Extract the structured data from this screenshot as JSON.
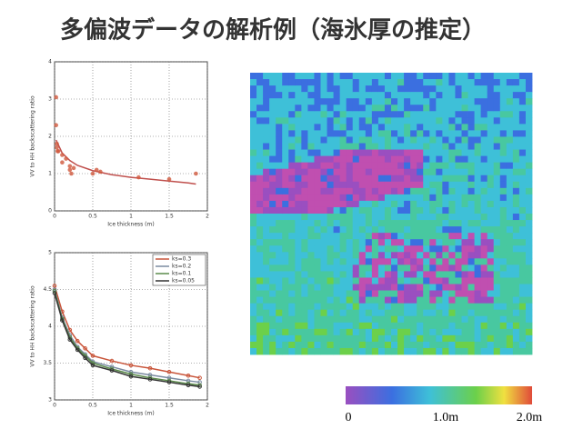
{
  "title": "多偏波データの解析例（海氷厚の推定）",
  "chart_data": [
    {
      "type": "scatter",
      "xlabel": "Ice thickness (m)",
      "ylabel": "VV to HH backscattering ratio",
      "xlim": [
        0,
        2
      ],
      "xticks": [
        0,
        0.5,
        1,
        1.5,
        2
      ],
      "ylim": [
        0,
        4
      ],
      "yticks": [
        0,
        1,
        2,
        3,
        4
      ],
      "grid": true,
      "series": [
        {
          "color": "#d0583c",
          "x": [
            0.02,
            0.02,
            0.03,
            0.03,
            0.04,
            0.05,
            0.1,
            0.1,
            0.15,
            0.2,
            0.2,
            0.22,
            0.25,
            0.5,
            0.55,
            0.6,
            1.1,
            1.5,
            1.85
          ],
          "values": [
            3.05,
            2.3,
            1.8,
            1.7,
            1.6,
            1.6,
            1.5,
            1.3,
            1.4,
            1.2,
            1.1,
            1.0,
            1.15,
            1.0,
            1.1,
            1.05,
            0.9,
            0.85,
            1.0
          ]
        }
      ],
      "fit": {
        "color": "#c0504d",
        "x": [
          0.02,
          0.1,
          0.2,
          0.3,
          0.5,
          0.75,
          1,
          1.25,
          1.5,
          1.75,
          1.85
        ],
        "values": [
          1.9,
          1.55,
          1.35,
          1.22,
          1.08,
          0.97,
          0.9,
          0.85,
          0.8,
          0.75,
          0.72
        ]
      }
    },
    {
      "type": "line",
      "xlabel": "Ice thickness (m)",
      "ylabel": "VV to HH backscattering ratio",
      "xlim": [
        0,
        2
      ],
      "xticks": [
        0,
        0.5,
        1,
        1.5,
        2
      ],
      "ylim": [
        3,
        5
      ],
      "yticks": [
        3,
        3.5,
        4,
        4.5,
        5
      ],
      "grid": true,
      "legend": "upper right",
      "x": [
        0,
        0.1,
        0.2,
        0.3,
        0.4,
        0.5,
        0.75,
        1,
        1.25,
        1.5,
        1.75,
        1.9
      ],
      "series": [
        {
          "name": "ks=0.3",
          "color": "#c9553a",
          "values": [
            4.55,
            4.2,
            3.95,
            3.8,
            3.7,
            3.6,
            3.53,
            3.47,
            3.43,
            3.38,
            3.33,
            3.3
          ]
        },
        {
          "name": "ks=0.2",
          "color": "#7a8aa0",
          "values": [
            4.5,
            4.12,
            3.88,
            3.72,
            3.62,
            3.52,
            3.45,
            3.38,
            3.34,
            3.3,
            3.26,
            3.24
          ]
        },
        {
          "name": "ks=0.1",
          "color": "#5a8a4a",
          "values": [
            4.48,
            4.1,
            3.85,
            3.7,
            3.6,
            3.5,
            3.42,
            3.35,
            3.3,
            3.26,
            3.22,
            3.2
          ]
        },
        {
          "name": "ks=0.05",
          "color": "#333333",
          "values": [
            4.45,
            4.08,
            3.82,
            3.68,
            3.57,
            3.47,
            3.4,
            3.32,
            3.28,
            3.24,
            3.2,
            3.18
          ]
        }
      ]
    }
  ],
  "colorbar": {
    "labels": [
      "0",
      "1.0m",
      "2.0m"
    ]
  }
}
